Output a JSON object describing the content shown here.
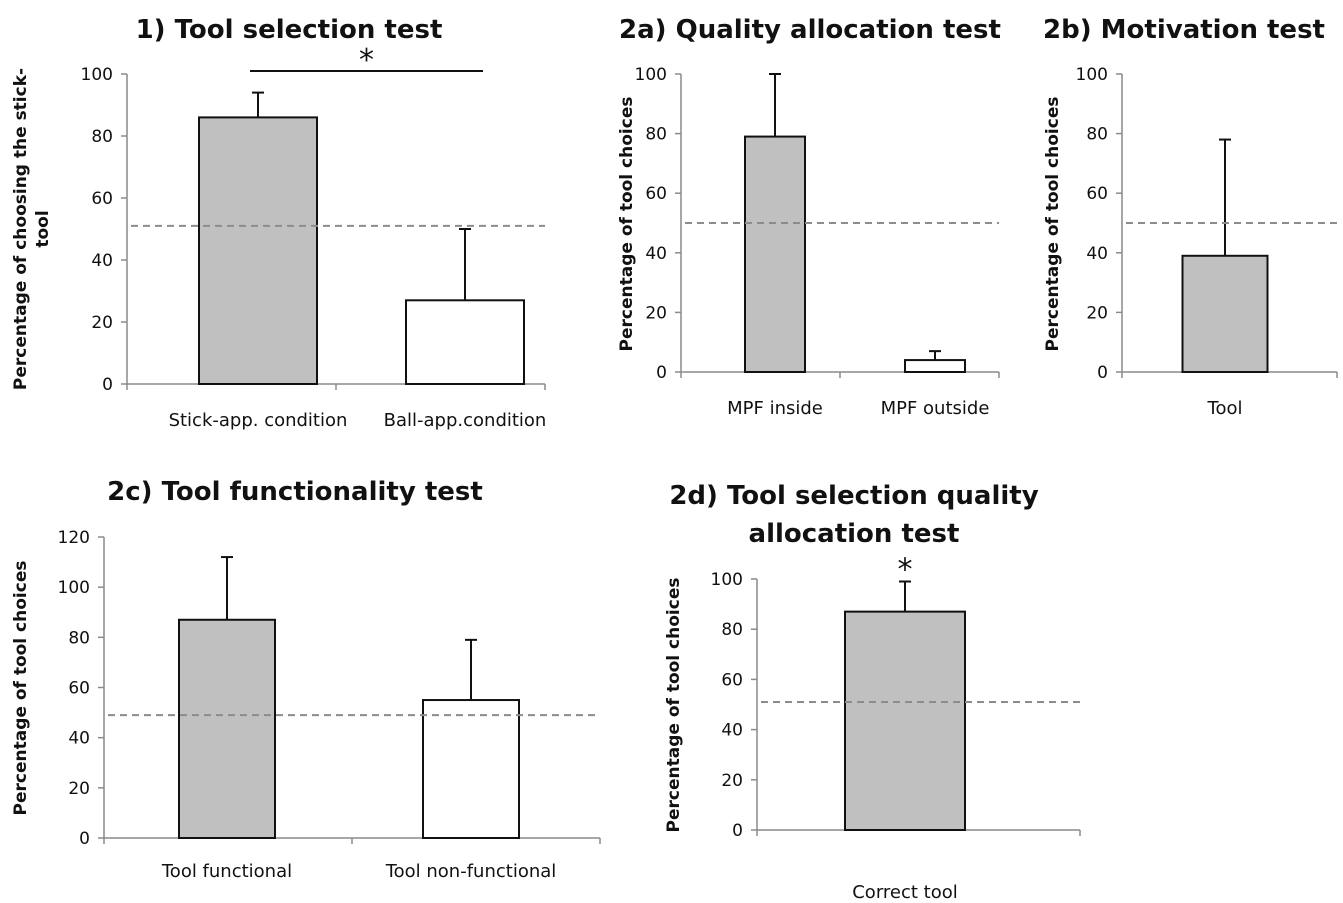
{
  "chart_data": [
    {
      "type": "bar",
      "title": "1) Tool selection test",
      "ylabel": [
        "Percentage of choosing the stick-",
        "tool"
      ],
      "ylim": [
        0,
        100
      ],
      "yticks": [
        0,
        20,
        40,
        60,
        80,
        100
      ],
      "categories": [
        "Stick-app. condition",
        "Ball-app.condition"
      ],
      "values": [
        86,
        27
      ],
      "errors": [
        8,
        23
      ],
      "fills": [
        "#c0c0c0",
        "#ffffff"
      ],
      "reference_line": 51,
      "significance": {
        "label": "*",
        "between": [
          0,
          1
        ]
      },
      "grid": false
    },
    {
      "type": "bar",
      "title": "2a) Quality allocation test",
      "ylabel": [
        "Percentage of tool choices"
      ],
      "ylim": [
        0,
        100
      ],
      "yticks": [
        0,
        20,
        40,
        60,
        80,
        100
      ],
      "categories": [
        "MPF inside",
        "MPF outside"
      ],
      "values": [
        79,
        4
      ],
      "errors": [
        21,
        3
      ],
      "fills": [
        "#c0c0c0",
        "#ffffff"
      ],
      "reference_line": 50,
      "grid": false
    },
    {
      "type": "bar",
      "title": "2b) Motivation test",
      "ylabel": [
        "Percentage of tool choices"
      ],
      "ylim": [
        0,
        100
      ],
      "yticks": [
        0,
        20,
        40,
        60,
        80,
        100
      ],
      "categories": [
        "Tool"
      ],
      "values": [
        39
      ],
      "errors": [
        39
      ],
      "fills": [
        "#c0c0c0"
      ],
      "reference_line": 50,
      "grid": false
    },
    {
      "type": "bar",
      "title": "2c) Tool functionality test",
      "ylabel": [
        "Percentage of tool choices"
      ],
      "ylim": [
        0,
        120
      ],
      "yticks": [
        0,
        20,
        40,
        60,
        80,
        100,
        120
      ],
      "categories": [
        "Tool functional",
        "Tool non-functional"
      ],
      "values": [
        87,
        55
      ],
      "errors": [
        25,
        24
      ],
      "fills": [
        "#c0c0c0",
        "#ffffff"
      ],
      "reference_line": 49,
      "grid": false
    },
    {
      "type": "bar",
      "title": [
        "2d) Tool selection quality",
        "allocation test"
      ],
      "ylabel": [
        "Percentage of tool choices"
      ],
      "ylim": [
        0,
        100
      ],
      "yticks": [
        0,
        20,
        40,
        60,
        80,
        100
      ],
      "categories": [
        "Correct tool"
      ],
      "values": [
        87
      ],
      "errors": [
        12
      ],
      "fills": [
        "#c0c0c0"
      ],
      "reference_line": 51,
      "significance": {
        "label": "*",
        "above": 0
      },
      "grid": false
    }
  ]
}
